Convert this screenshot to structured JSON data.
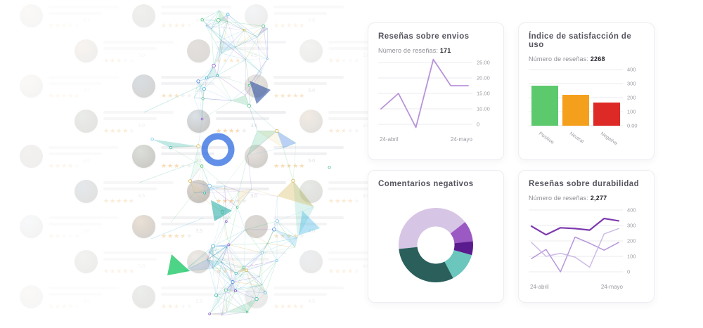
{
  "app": {
    "background": "#ffffff",
    "card_border": "#ededf2",
    "title_color": "#55555f",
    "tick_color": "#9b9ba3",
    "grid_color": "#ebebef"
  },
  "cards": {
    "envios": {
      "title": "Reseñas sobre envios",
      "subtitle_label": "Número de reseñas:",
      "subtitle_value": "171"
    },
    "satisfaccion": {
      "title": "Índice de satisfacción de uso",
      "subtitle_label": "Número de reseñas:",
      "subtitle_value": "2268"
    },
    "negativos": {
      "title": "Comentarios negativos"
    },
    "durabilidad": {
      "title": "Reseñas sobre durabilidad",
      "subtitle_label": "Número de reseñas:",
      "subtitle_value": "2,277"
    }
  },
  "chart_data": [
    {
      "id": "envios",
      "type": "line",
      "title": "Reseñas sobre envios",
      "x_start_label": "24-abril",
      "x_end_label": "24-mayo",
      "yticks": [
        "25.00",
        "20.00",
        "15.00",
        "10.00",
        "0"
      ],
      "ytick_values": [
        25,
        20,
        15,
        10,
        0
      ],
      "grid": true,
      "legend": false,
      "series": [
        {
          "name": "reseñas",
          "color": "#b993d9",
          "width": 1.8,
          "opacity": 1,
          "values": [
            10,
            15,
            -2,
            26,
            17.5,
            17.5
          ]
        }
      ]
    },
    {
      "id": "satisfaccion",
      "type": "bar",
      "title": "Índice de satisfacción de uso",
      "categories": [
        "Positive",
        "Neutral",
        "Negative"
      ],
      "values": [
        285,
        220,
        165
      ],
      "colors": [
        "#5dc96d",
        "#f5a01d",
        "#dd2a26"
      ],
      "yticks": [
        "400",
        "300",
        "200",
        "100",
        "0.00"
      ],
      "ytick_values": [
        400,
        300,
        200,
        100,
        0
      ],
      "grid": true,
      "legend": false
    },
    {
      "id": "negativos",
      "type": "donut",
      "title": "Comentarios negativos",
      "start_angle_clock": 264,
      "values": [
        41,
        9,
        6,
        13,
        31
      ],
      "colors": [
        "#d7c5e6",
        "#9b59c3",
        "#5a1b8e",
        "#6bc7bd",
        "#2a5f5c"
      ],
      "legend": false
    },
    {
      "id": "durabilidad",
      "type": "line",
      "title": "Reseñas sobre durabilidad",
      "x_start_label": "24-abril",
      "x_end_label": "24-mayo",
      "yticks": [
        "400",
        "300",
        "200",
        "100",
        "0"
      ],
      "ytick_values": [
        400,
        300,
        200,
        100,
        0
      ],
      "grid": true,
      "legend": false,
      "series": [
        {
          "name": "serie-1",
          "color": "#7c3aad",
          "width": 2.2,
          "opacity": 1,
          "values": [
            295,
            240,
            285,
            280,
            270,
            345,
            330
          ]
        },
        {
          "name": "serie-2",
          "color": "#9d74cf",
          "width": 1.5,
          "opacity": 0.75,
          "values": [
            85,
            145,
            0,
            225,
            185,
            140,
            190
          ]
        },
        {
          "name": "serie-3",
          "color": "#c4b0e0",
          "width": 1.5,
          "opacity": 0.85,
          "values": [
            190,
            100,
            120,
            95,
            30,
            245,
            280
          ]
        }
      ]
    }
  ],
  "decoration": {
    "star_color": "#f2a43c",
    "star_empty_color": "#d8d8dc",
    "ratings": [
      3.5,
      4.0,
      5.0,
      3.0,
      4.0,
      2.0,
      4.5,
      3.0,
      5.0,
      4.0,
      3.5,
      2.5,
      4.0,
      3.0,
      5.0,
      4.5,
      3.0,
      4.0,
      2.0,
      3.5,
      4.0,
      5.0,
      3.0,
      4.0,
      3.5,
      2.5,
      4.5
    ],
    "avatar_colors": [
      "#b7a496",
      "#93a08c",
      "#a9b7c6",
      "#c0a27f",
      "#8d7f72",
      "#a4ae9e",
      "#c4b4a4",
      "#7e8f9e"
    ],
    "network_palette": [
      "#2bb3a3",
      "#53c08b",
      "#3f7ee0",
      "#79c6ef",
      "#8a56c9",
      "#4fc978",
      "#49b8d6",
      "#d4b24a"
    ],
    "network_accents": {
      "ring_blue": "#2e6be0",
      "solid_green": "#2ecc71",
      "navy": "#2c4f9e",
      "teal": "#1ba8a0",
      "sky": "#47b8e6"
    }
  }
}
